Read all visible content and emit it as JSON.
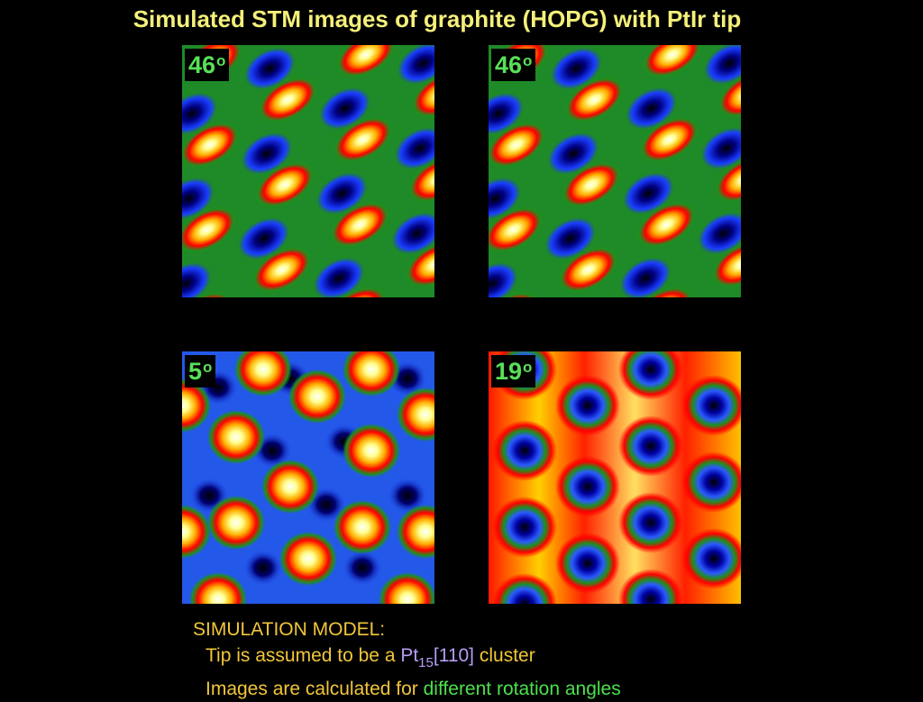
{
  "title": "Simulated STM images of graphite (HOPG) with PtIr tip",
  "panels": [
    {
      "angle": "46",
      "degree_mark": "o"
    },
    {
      "angle": "46",
      "degree_mark": "o"
    },
    {
      "angle": "5",
      "degree_mark": "o"
    },
    {
      "angle": "19",
      "degree_mark": "o"
    }
  ],
  "caption": {
    "heading": "SIMULATION MODEL:",
    "line1_prefix": "Tip is assumed to be a ",
    "line1_pt": "Pt",
    "line1_sub": "15",
    "line1_miller": "[110]",
    "line1_suffix": " cluster",
    "line2_prefix": "Images are calculated for ",
    "line2_highlight": "different rotation angles"
  },
  "colors": {
    "title": "#f4f07a",
    "caption": "#f2c63a",
    "label": "#58e058",
    "highlight_green": "#4ce04c",
    "highlight_purple": "#b79cf6",
    "colormap": [
      "#000000",
      "#0000aa",
      "#2a5aff",
      "#1f8f1f",
      "#ff0000",
      "#ffb000",
      "#ffff8c",
      "#ffffff"
    ]
  }
}
